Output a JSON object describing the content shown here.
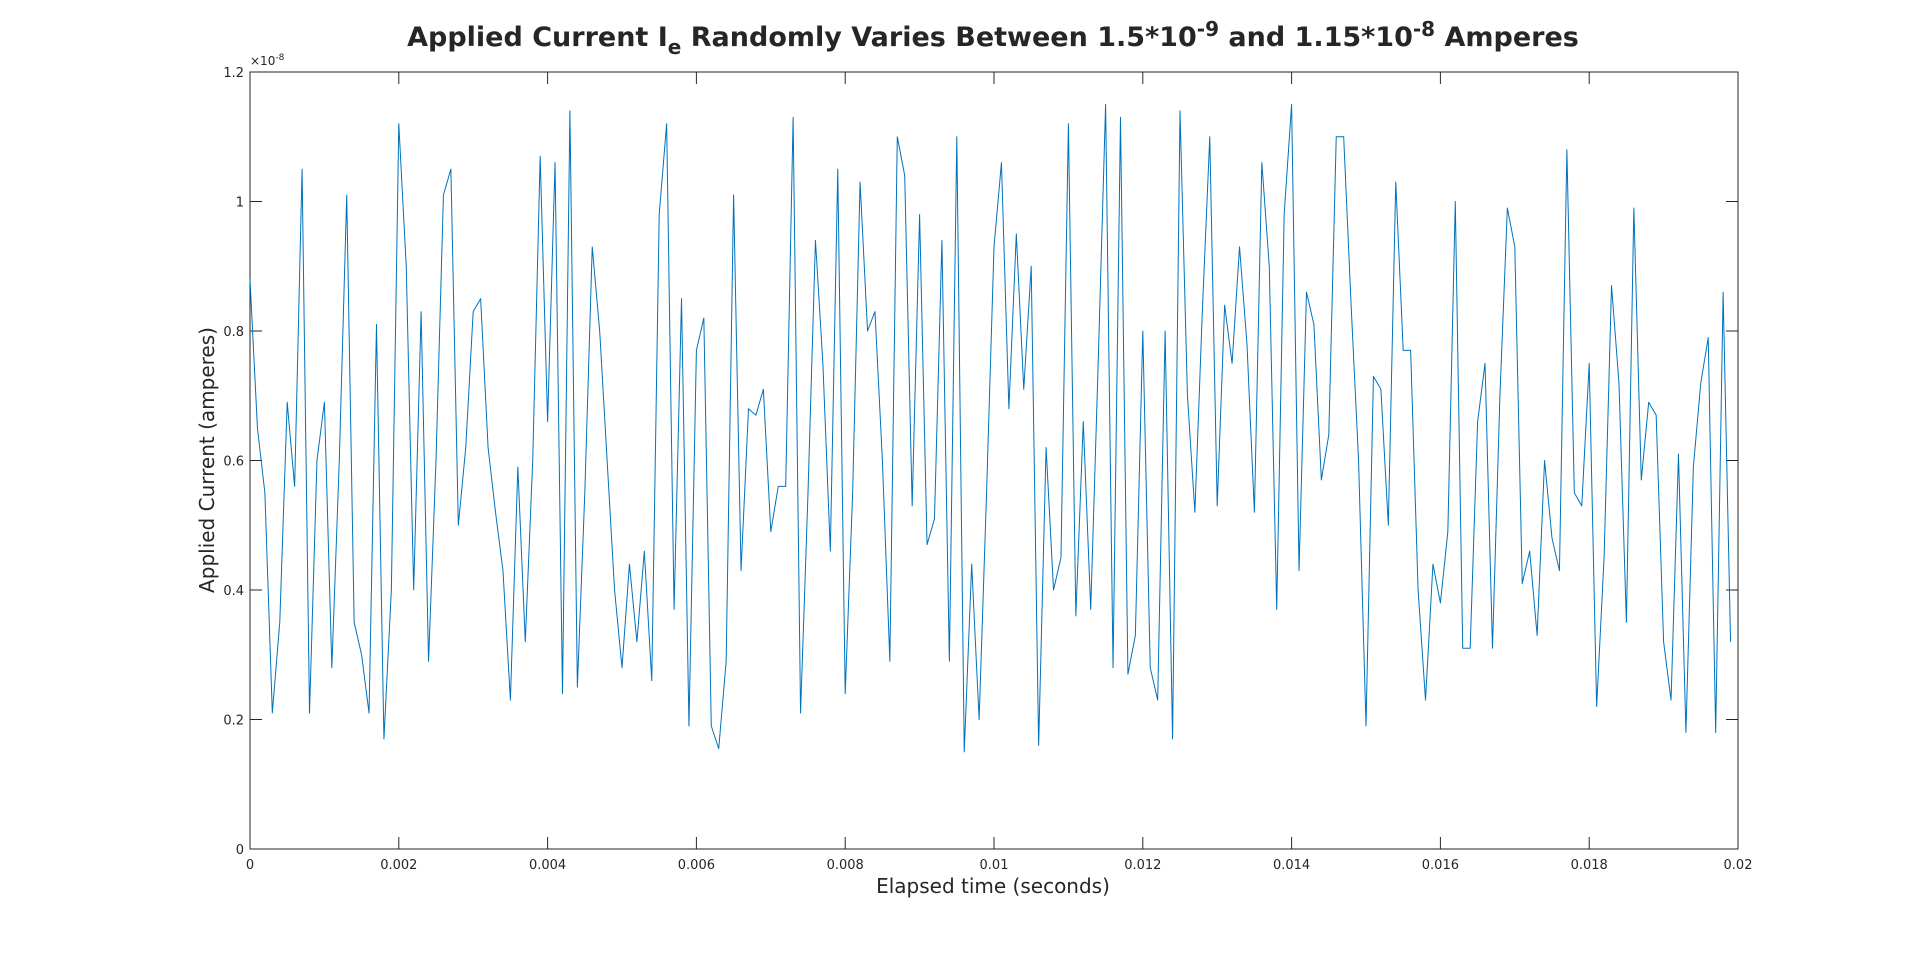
{
  "chart_data": {
    "type": "line",
    "title_parts": [
      "Applied Current I",
      "e",
      " Randomly Varies Between 1.5*10",
      "-9",
      " and 1.15*10",
      "-8",
      " Amperes"
    ],
    "xlabel": "Elapsed time (seconds)",
    "ylabel": "Applied Current (amperes)",
    "y_multiplier": "×10",
    "y_exponent": "-8",
    "color": "#0072bd",
    "xlim": [
      0,
      0.02
    ],
    "xticks": [
      0,
      0.002,
      0.004,
      0.006,
      0.008,
      0.01,
      0.012,
      0.014,
      0.016,
      0.018,
      0.02
    ],
    "ylim": [
      0,
      1.2
    ],
    "yticks": [
      0,
      0.2,
      0.4,
      0.6,
      0.8,
      1,
      1.2
    ],
    "grid": false,
    "x": [
      0,
      0.0001,
      0.0002,
      0.0003,
      0.0004,
      0.0005,
      0.0006,
      0.0007,
      0.0008,
      0.0009,
      0.001,
      0.0011,
      0.0012,
      0.0013,
      0.0014,
      0.0015,
      0.0016,
      0.0017,
      0.0018,
      0.0019,
      0.002,
      0.0021,
      0.0022,
      0.0023,
      0.0024,
      0.0025,
      0.0026,
      0.0027,
      0.0028,
      0.0029,
      0.003,
      0.0031,
      0.0032,
      0.0033,
      0.0034,
      0.0035,
      0.0036,
      0.0037,
      0.0038,
      0.0039,
      0.004,
      0.0041,
      0.0042,
      0.0043,
      0.0044,
      0.0045,
      0.0046,
      0.0047,
      0.0048,
      0.0049,
      0.005,
      0.0051,
      0.0052,
      0.0053,
      0.0054,
      0.0055,
      0.0056,
      0.0057,
      0.0058,
      0.0059,
      0.006,
      0.0061,
      0.0062,
      0.0063,
      0.0064,
      0.0065,
      0.0066,
      0.0067,
      0.0068,
      0.0069,
      0.007,
      0.0071,
      0.0072,
      0.0073,
      0.0074,
      0.0075,
      0.0076,
      0.0077,
      0.0078,
      0.0079,
      0.008,
      0.0081,
      0.0082,
      0.0083,
      0.0084,
      0.0085,
      0.0086,
      0.0087,
      0.0088,
      0.0089,
      0.009,
      0.0091,
      0.0092,
      0.0093,
      0.0094,
      0.0095,
      0.0096,
      0.0097,
      0.0098,
      0.0099,
      0.01,
      0.0101,
      0.0102,
      0.0103,
      0.0104,
      0.0105,
      0.0106,
      0.0107,
      0.0108,
      0.0109,
      0.011,
      0.0111,
      0.0112,
      0.0113,
      0.0114,
      0.0115,
      0.0116,
      0.0117,
      0.0118,
      0.0119,
      0.012,
      0.0121,
      0.0122,
      0.0123,
      0.0124,
      0.0125,
      0.0126,
      0.0127,
      0.0128,
      0.0129,
      0.013,
      0.0131,
      0.0132,
      0.0133,
      0.0134,
      0.0135,
      0.0136,
      0.0137,
      0.0138,
      0.0139,
      0.014,
      0.0141,
      0.0142,
      0.0143,
      0.0144,
      0.0145,
      0.0146,
      0.0147,
      0.0148,
      0.0149,
      0.015,
      0.0151,
      0.0152,
      0.0153,
      0.0154,
      0.0155,
      0.0156,
      0.0157,
      0.0158,
      0.0159,
      0.016,
      0.0161,
      0.0162,
      0.0163,
      0.0164,
      0.0165,
      0.0166,
      0.0167,
      0.0168,
      0.0169,
      0.017,
      0.0171,
      0.0172,
      0.0173,
      0.0174,
      0.0175,
      0.0176,
      0.0177,
      0.0178,
      0.0179,
      0.018,
      0.0181,
      0.0182,
      0.0183,
      0.0184,
      0.0185,
      0.0186,
      0.0187,
      0.0188,
      0.0189,
      0.019,
      0.0191,
      0.0192,
      0.0193,
      0.0194,
      0.0195,
      0.0196,
      0.0197,
      0.0198,
      0.0199
    ],
    "values": [
      0.88,
      0.65,
      0.55,
      0.21,
      0.35,
      0.69,
      0.56,
      1.05,
      0.21,
      0.6,
      0.69,
      0.28,
      0.6,
      1.01,
      0.35,
      0.3,
      0.21,
      0.81,
      0.17,
      0.4,
      1.12,
      0.9,
      0.4,
      0.83,
      0.29,
      0.6,
      1.01,
      1.05,
      0.5,
      0.62,
      0.83,
      0.85,
      0.62,
      0.52,
      0.43,
      0.23,
      0.59,
      0.32,
      0.6,
      1.07,
      0.66,
      1.06,
      0.24,
      1.14,
      0.25,
      0.55,
      0.93,
      0.8,
      0.6,
      0.4,
      0.28,
      0.44,
      0.32,
      0.46,
      0.26,
      0.98,
      1.12,
      0.37,
      0.85,
      0.19,
      0.77,
      0.82,
      0.19,
      0.155,
      0.29,
      1.01,
      0.43,
      0.68,
      0.67,
      0.71,
      0.49,
      0.56,
      0.56,
      1.13,
      0.21,
      0.55,
      0.94,
      0.75,
      0.46,
      1.05,
      0.24,
      0.55,
      1.03,
      0.8,
      0.83,
      0.6,
      0.29,
      1.1,
      1.04,
      0.53,
      0.98,
      0.47,
      0.51,
      0.94,
      0.29,
      1.1,
      0.15,
      0.44,
      0.2,
      0.55,
      0.93,
      1.06,
      0.68,
      0.95,
      0.71,
      0.9,
      0.16,
      0.62,
      0.4,
      0.45,
      1.12,
      0.36,
      0.66,
      0.37,
      0.75,
      1.15,
      0.28,
      1.13,
      0.27,
      0.33,
      0.8,
      0.28,
      0.23,
      0.8,
      0.17,
      1.14,
      0.7,
      0.52,
      0.83,
      1.1,
      0.53,
      0.84,
      0.75,
      0.93,
      0.78,
      0.52,
      1.06,
      0.9,
      0.37,
      0.98,
      1.15,
      0.43,
      0.86,
      0.81,
      0.57,
      0.64,
      1.1,
      1.1,
      0.84,
      0.6,
      0.19,
      0.73,
      0.71,
      0.5,
      1.03,
      0.77,
      0.77,
      0.4,
      0.23,
      0.44,
      0.38,
      0.49,
      1.0,
      0.31,
      0.31,
      0.66,
      0.75,
      0.31,
      0.7,
      0.99,
      0.93,
      0.41,
      0.46,
      0.33,
      0.6,
      0.48,
      0.43,
      1.08,
      0.55,
      0.53,
      0.75,
      0.22,
      0.45,
      0.87,
      0.72,
      0.35,
      0.99,
      0.57,
      0.69,
      0.67,
      0.32,
      0.23,
      0.61,
      0.18,
      0.59,
      0.72,
      0.79,
      0.18,
      0.86,
      0.32
    ]
  }
}
